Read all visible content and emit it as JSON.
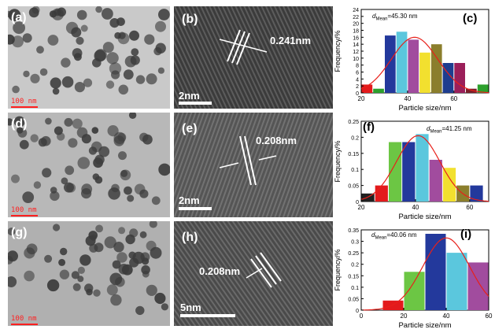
{
  "panels": {
    "a": {
      "label": "(a)",
      "scale": "100 nm"
    },
    "b": {
      "label": "(b)",
      "d": "0.241nm",
      "scale": "2nm"
    },
    "c": {
      "label": "(c)",
      "dmean_text": "=45.30 nm"
    },
    "d": {
      "label": "(d)",
      "scale": "100 nm"
    },
    "e": {
      "label": "(e)",
      "d": "0.208nm",
      "scale": "2nm"
    },
    "f": {
      "label": "(f)",
      "dmean_text": "=41.25 nm"
    },
    "g": {
      "label": "(g)",
      "scale": "100 nm"
    },
    "h": {
      "label": "(h)",
      "d": "0.208nm",
      "scale": "5nm"
    },
    "i": {
      "label": "(i)",
      "dmean_text": "=40.06 nm"
    }
  },
  "chart_data": [
    {
      "type": "bar",
      "panel": "(c)",
      "xlabel": "Particle size/nm",
      "ylabel": "Frequency/%",
      "dmean": "d_Mean=45.30 nm",
      "xlim": [
        20,
        75
      ],
      "ylim": [
        0,
        24
      ],
      "xticks": [
        20,
        40,
        60
      ],
      "yticks": [
        0,
        2,
        4,
        6,
        8,
        10,
        12,
        14,
        16,
        18,
        20,
        22,
        24
      ],
      "bin_width": 5,
      "bars": [
        {
          "x": 22.5,
          "value": 2.4,
          "color": "#e31a1c"
        },
        {
          "x": 27.5,
          "value": 1.2,
          "color": "#2ca02c"
        },
        {
          "x": 32.5,
          "value": 16.5,
          "color": "#23399c"
        },
        {
          "x": 37.5,
          "value": 17.6,
          "color": "#5bc7dd"
        },
        {
          "x": 42.5,
          "value": 15.3,
          "color": "#a14c9e"
        },
        {
          "x": 47.5,
          "value": 11.6,
          "color": "#f2e02f"
        },
        {
          "x": 52.5,
          "value": 14.0,
          "color": "#8b7e2c"
        },
        {
          "x": 57.5,
          "value": 8.6,
          "color": "#1e3d8f"
        },
        {
          "x": 62.5,
          "value": 8.6,
          "color": "#9b1f5a"
        },
        {
          "x": 67.5,
          "value": 1.2,
          "color": "#7a1f2a"
        },
        {
          "x": 72.5,
          "value": 2.4,
          "color": "#2ca02c"
        }
      ],
      "fit": {
        "mean": 43,
        "sigma": 10,
        "peak": 16
      }
    },
    {
      "type": "bar",
      "panel": "(f)",
      "xlabel": "Particle size/nm",
      "ylabel": "Frequency/%",
      "dmean": "d_Mean=41.25 nm",
      "xlim": [
        20,
        67
      ],
      "ylim": [
        0,
        0.25
      ],
      "xticks": [
        20,
        40,
        60
      ],
      "yticks": [
        0.0,
        0.05,
        0.1,
        0.15,
        0.2,
        0.25
      ],
      "bin_width": 5,
      "bars": [
        {
          "x": 22.5,
          "value": 0.025,
          "color": "#202020"
        },
        {
          "x": 27.5,
          "value": 0.05,
          "color": "#e31a1c"
        },
        {
          "x": 32.5,
          "value": 0.185,
          "color": "#6cc644"
        },
        {
          "x": 37.5,
          "value": 0.185,
          "color": "#23399c"
        },
        {
          "x": 42.5,
          "value": 0.21,
          "color": "#5bc7dd"
        },
        {
          "x": 47.5,
          "value": 0.13,
          "color": "#a14c9e"
        },
        {
          "x": 52.5,
          "value": 0.105,
          "color": "#f2e02f"
        },
        {
          "x": 57.5,
          "value": 0.05,
          "color": "#8b7e2c"
        },
        {
          "x": 62.5,
          "value": 0.05,
          "color": "#23399c"
        }
      ],
      "fit": {
        "mean": 41,
        "sigma": 8,
        "peak": 0.205
      }
    },
    {
      "type": "bar",
      "panel": "(i)",
      "xlabel": "Particle size/nm",
      "ylabel": "Frequency/%",
      "dmean": "d_Mean=40.06 nm",
      "xlim": [
        0,
        60
      ],
      "ylim": [
        0,
        0.35
      ],
      "xticks": [
        0,
        20,
        40,
        60
      ],
      "yticks": [
        0.0,
        0.05,
        0.1,
        0.15,
        0.2,
        0.25,
        0.3,
        0.35
      ],
      "bin_width": 10,
      "bars": [
        {
          "x": 15,
          "value": 0.042,
          "color": "#e31a1c"
        },
        {
          "x": 25,
          "value": 0.167,
          "color": "#6cc644"
        },
        {
          "x": 35,
          "value": 0.333,
          "color": "#23399c"
        },
        {
          "x": 45,
          "value": 0.25,
          "color": "#5bc7dd"
        },
        {
          "x": 55,
          "value": 0.208,
          "color": "#a14c9e"
        }
      ],
      "fit": {
        "mean": 40,
        "sigma": 11,
        "peak": 0.315
      }
    }
  ]
}
